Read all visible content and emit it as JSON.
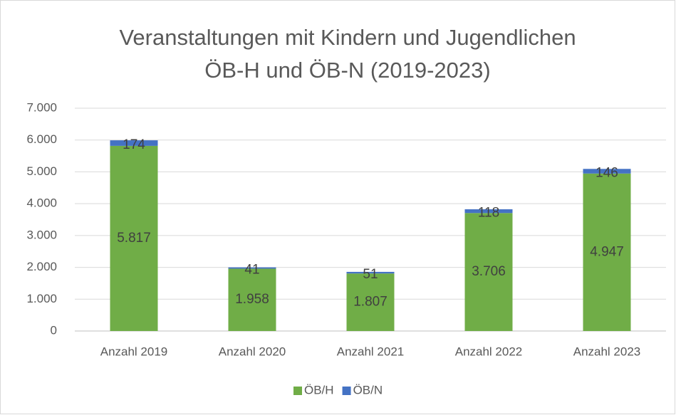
{
  "chart_data": {
    "type": "stacked_bar",
    "title": [
      "Veranstaltungen mit Kindern und Jugendlichen",
      "ÖB-H und ÖB-N (2019-2023)"
    ],
    "categories": [
      "Anzahl 2019",
      "Anzahl 2020",
      "Anzahl 2021",
      "Anzahl 2022",
      "Anzahl 2023"
    ],
    "series": [
      {
        "name": "ÖB/H",
        "color": "#70ad47",
        "values": [
          5817,
          1958,
          1807,
          3706,
          4947
        ],
        "value_labels": [
          "5.817",
          "1.958",
          "1.807",
          "3.706",
          "4.947"
        ]
      },
      {
        "name": "ÖB/N",
        "color": "#4472c4",
        "values": [
          174,
          41,
          51,
          118,
          146
        ]
      }
    ],
    "ylim": [
      0,
      7000
    ],
    "yticks": [
      0,
      {
        "value": 1000,
        "label": "1.000"
      },
      {
        "value": 2000,
        "label": "2.000"
      },
      {
        "value": 3000,
        "label": "3.000"
      },
      {
        "value": 4000,
        "label": "4.000"
      },
      {
        "value": 5000,
        "label": "5.000"
      },
      {
        "value": 6000,
        "label": "6.000"
      },
      {
        "value": 7000,
        "label": "7.000"
      }
    ],
    "grid": true,
    "legend": "bottom"
  }
}
